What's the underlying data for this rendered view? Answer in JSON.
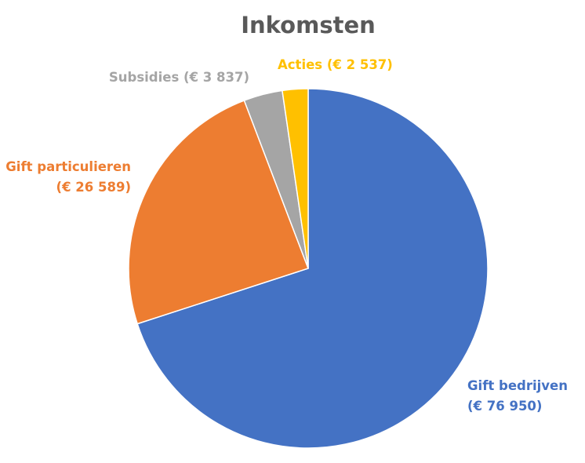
{
  "chart_data": {
    "type": "pie",
    "title": "Inkomsten",
    "slices": [
      {
        "name": "Gift bedrijven",
        "value": 76950,
        "label_lines": [
          "Gift bedrijven",
          "(€ 76 950)"
        ],
        "color": "#4472C4"
      },
      {
        "name": "Gift particulieren",
        "value": 26589,
        "label_lines": [
          "Gift particulieren",
          "(€ 26 589)"
        ],
        "color": "#ED7D31"
      },
      {
        "name": "Subsidies",
        "value": 3837,
        "label_lines": [
          "Subsidies (€ 3 837)"
        ],
        "color": "#A5A5A5"
      },
      {
        "name": "Acties",
        "value": 2537,
        "label_lines": [
          "Acties (€ 2 537)"
        ],
        "color": "#FFC000"
      }
    ],
    "start_angle_deg": 0,
    "direction": "clockwise",
    "legend": "none",
    "data_labels": "outside"
  }
}
